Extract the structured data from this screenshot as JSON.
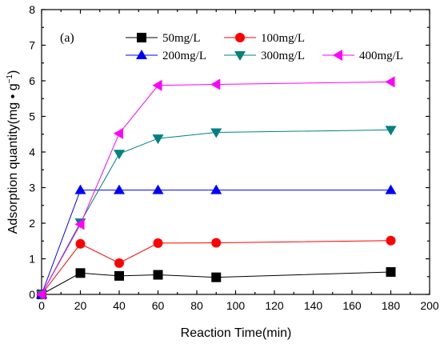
{
  "chart_data": {
    "type": "line",
    "panel_label": "(a)",
    "xlabel": "Reaction Time(min)",
    "ylabel": "Adsorption quantity(mg • g",
    "ylabel_sup": "−1",
    "ylabel_close": ")",
    "xlim": [
      0,
      200
    ],
    "ylim": [
      0,
      8
    ],
    "xticks": [
      "0",
      "20",
      "40",
      "60",
      "80",
      "100",
      "120",
      "140",
      "160",
      "180",
      "200"
    ],
    "yticks": [
      "0",
      "1",
      "2",
      "3",
      "4",
      "5",
      "6",
      "7",
      "8"
    ],
    "grid": false,
    "legend_position": "top-right",
    "series": [
      {
        "name": "50mg/L",
        "marker": "square",
        "color": "#000000",
        "line_color": "#000000",
        "x": [
          0,
          20,
          40,
          60,
          90,
          180
        ],
        "y": [
          0,
          0.6,
          0.52,
          0.55,
          0.48,
          0.63
        ]
      },
      {
        "name": "100mg/L",
        "marker": "circle",
        "color": "#ff0000",
        "line_color": "#ff0000",
        "x": [
          0,
          20,
          40,
          60,
          90,
          180
        ],
        "y": [
          0,
          1.42,
          0.88,
          1.44,
          1.45,
          1.51
        ]
      },
      {
        "name": "200mg/L",
        "marker": "triangle-up",
        "color": "#0000ff",
        "line_color": "#0000ff",
        "x": [
          0,
          20,
          40,
          60,
          90,
          180
        ],
        "y": [
          0,
          2.93,
          2.93,
          2.93,
          2.93,
          2.93
        ]
      },
      {
        "name": "300mg/L",
        "marker": "triangle-down",
        "color": "#008080",
        "line_color": "#008080",
        "x": [
          0,
          20,
          40,
          60,
          90,
          180
        ],
        "y": [
          0,
          2.02,
          3.95,
          4.38,
          4.55,
          4.62
        ]
      },
      {
        "name": "400mg/L",
        "marker": "triangle-left",
        "color": "#ff00ff",
        "line_color": "#ff00ff",
        "x": [
          0,
          20,
          40,
          60,
          90,
          180
        ],
        "y": [
          0,
          1.97,
          4.52,
          5.87,
          5.9,
          5.97
        ]
      }
    ]
  }
}
